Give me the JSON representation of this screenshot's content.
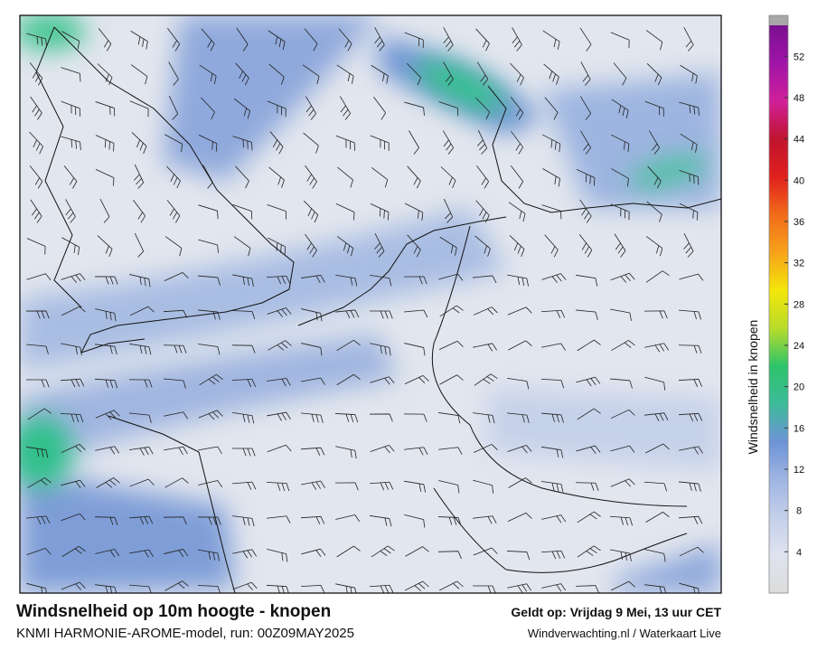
{
  "title": "Windsnelheid op 10m hoogte - knopen",
  "subtitle": "KNMI HARMONIE-AROME-model, run: 00Z09MAY2025",
  "valid_time": "Geldt op: Vrijdag 9 Mei, 13 uur CET",
  "credit": "Windverwachting.nl / Waterkaart Live",
  "colorbar": {
    "label": "Windsnelheid in knopen",
    "range": [
      0,
      55
    ],
    "ticks": [
      4,
      8,
      12,
      16,
      20,
      24,
      28,
      32,
      36,
      40,
      44,
      48,
      52
    ]
  }
}
